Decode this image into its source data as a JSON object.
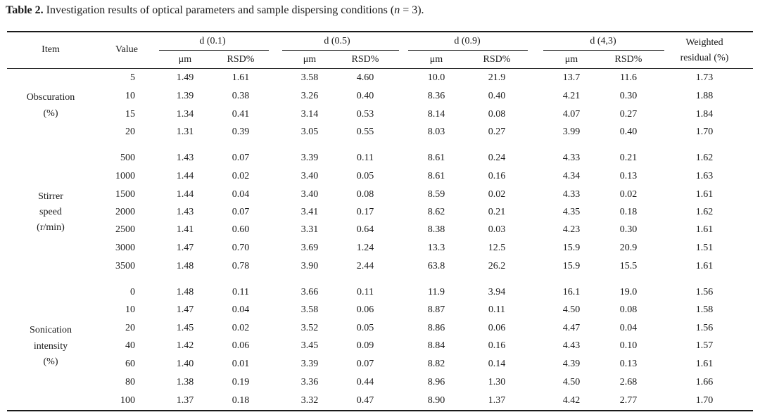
{
  "caption": {
    "label": "Table 2.",
    "text_before": " Investigation results of optical parameters and sample dispersing conditions (",
    "n_var": "n",
    "text_after": " = 3)."
  },
  "headers": {
    "item": "Item",
    "value": "Value",
    "groups": [
      "d (0.1)",
      "d (0.5)",
      "d (0.9)",
      "d (4,3)"
    ],
    "sub": [
      "μm",
      "RSD%"
    ],
    "weighted_line1": "Weighted",
    "weighted_line2": "residual (%)"
  },
  "sections": [
    {
      "label_lines": [
        "Obscuration",
        "(%)"
      ],
      "rows": [
        [
          "5",
          "1.49",
          "1.61",
          "3.58",
          "4.60",
          "10.0",
          "21.9",
          "13.7",
          "11.6",
          "1.73"
        ],
        [
          "10",
          "1.39",
          "0.38",
          "3.26",
          "0.40",
          "8.36",
          "0.40",
          "4.21",
          "0.30",
          "1.88"
        ],
        [
          "15",
          "1.34",
          "0.41",
          "3.14",
          "0.53",
          "8.14",
          "0.08",
          "4.07",
          "0.27",
          "1.84"
        ],
        [
          "20",
          "1.31",
          "0.39",
          "3.05",
          "0.55",
          "8.03",
          "0.27",
          "3.99",
          "0.40",
          "1.70"
        ]
      ]
    },
    {
      "label_lines": [
        "Stirrer",
        "speed",
        "(r/min)"
      ],
      "rows": [
        [
          "500",
          "1.43",
          "0.07",
          "3.39",
          "0.11",
          "8.61",
          "0.24",
          "4.33",
          "0.21",
          "1.62"
        ],
        [
          "1000",
          "1.44",
          "0.02",
          "3.40",
          "0.05",
          "8.61",
          "0.16",
          "4.34",
          "0.13",
          "1.63"
        ],
        [
          "1500",
          "1.44",
          "0.04",
          "3.40",
          "0.08",
          "8.59",
          "0.02",
          "4.33",
          "0.02",
          "1.61"
        ],
        [
          "2000",
          "1.43",
          "0.07",
          "3.41",
          "0.17",
          "8.62",
          "0.21",
          "4.35",
          "0.18",
          "1.62"
        ],
        [
          "2500",
          "1.41",
          "0.60",
          "3.31",
          "0.64",
          "8.38",
          "0.03",
          "4.23",
          "0.30",
          "1.61"
        ],
        [
          "3000",
          "1.47",
          "0.70",
          "3.69",
          "1.24",
          "13.3",
          "12.5",
          "15.9",
          "20.9",
          "1.51"
        ],
        [
          "3500",
          "1.48",
          "0.78",
          "3.90",
          "2.44",
          "63.8",
          "26.2",
          "15.9",
          "15.5",
          "1.61"
        ]
      ]
    },
    {
      "label_lines": [
        "Sonication",
        "intensity",
        "(%)"
      ],
      "rows": [
        [
          "0",
          "1.48",
          "0.11",
          "3.66",
          "0.11",
          "11.9",
          "3.94",
          "16.1",
          "19.0",
          "1.56"
        ],
        [
          "10",
          "1.47",
          "0.04",
          "3.58",
          "0.06",
          "8.87",
          "0.11",
          "4.50",
          "0.08",
          "1.58"
        ],
        [
          "20",
          "1.45",
          "0.02",
          "3.52",
          "0.05",
          "8.86",
          "0.06",
          "4.47",
          "0.04",
          "1.56"
        ],
        [
          "40",
          "1.42",
          "0.06",
          "3.45",
          "0.09",
          "8.84",
          "0.16",
          "4.43",
          "0.10",
          "1.57"
        ],
        [
          "60",
          "1.40",
          "0.01",
          "3.39",
          "0.07",
          "8.82",
          "0.14",
          "4.39",
          "0.13",
          "1.61"
        ],
        [
          "80",
          "1.38",
          "0.19",
          "3.36",
          "0.44",
          "8.96",
          "1.30",
          "4.50",
          "2.68",
          "1.66"
        ],
        [
          "100",
          "1.37",
          "0.18",
          "3.32",
          "0.47",
          "8.90",
          "1.37",
          "4.42",
          "2.77",
          "1.70"
        ]
      ]
    }
  ]
}
